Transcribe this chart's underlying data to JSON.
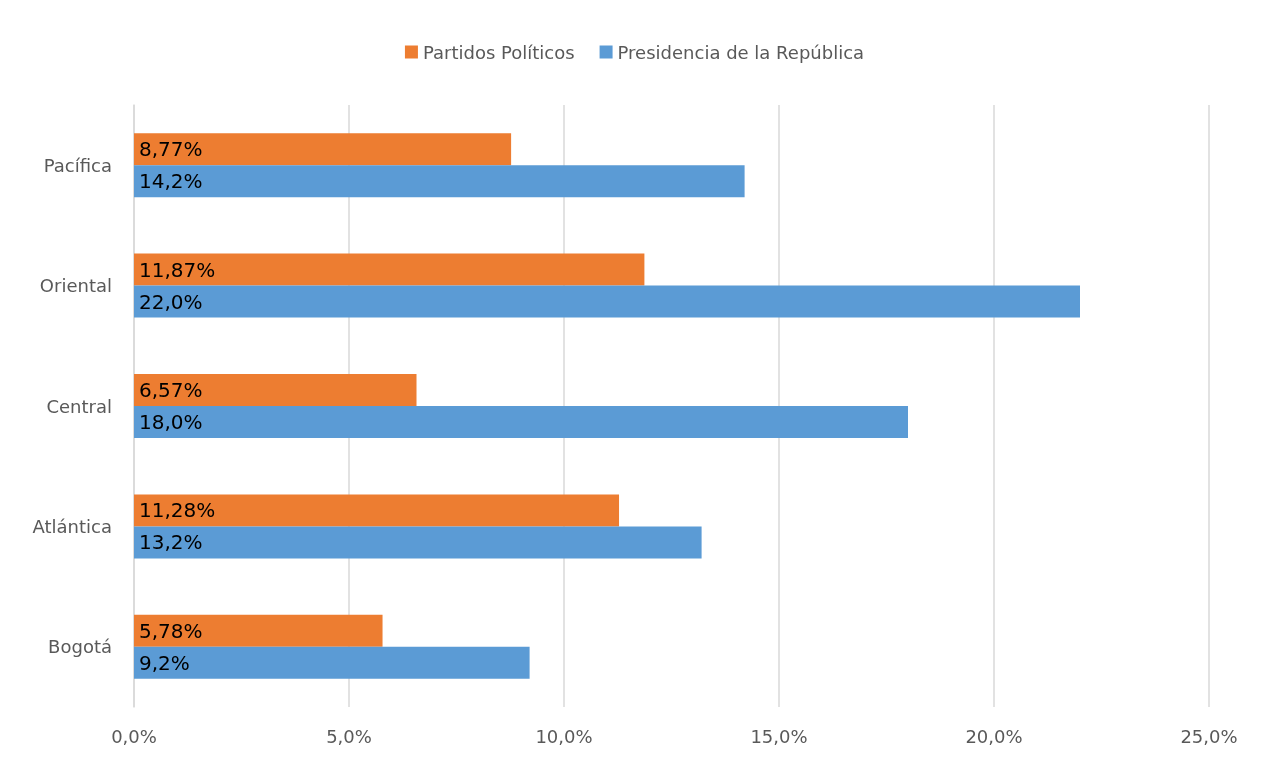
{
  "chart_data": {
    "type": "bar",
    "orientation": "horizontal",
    "categories": [
      "Pacífica",
      "Oriental",
      "Central",
      "Atlántica",
      "Bogotá"
    ],
    "series": [
      {
        "name": "Partidos Políticos",
        "color": "#ed7d31",
        "values": [
          8.77,
          11.87,
          6.57,
          11.28,
          5.78
        ],
        "value_labels": [
          "8,77%",
          "11,87%",
          "6,57%",
          "11,28%",
          "5,78%"
        ]
      },
      {
        "name": "Presidencia de la República",
        "color": "#5b9bd5",
        "values": [
          14.2,
          22.0,
          18.0,
          13.2,
          9.2
        ],
        "value_labels": [
          "14,2%",
          "22,0%",
          "18,0%",
          "13,2%",
          "9,2%"
        ]
      }
    ],
    "xlim": [
      0,
      25
    ],
    "xticks": [
      {
        "value": 0,
        "label": "0,0%"
      },
      {
        "value": 5,
        "label": "5,0%"
      },
      {
        "value": 10,
        "label": "10,0%"
      },
      {
        "value": 15,
        "label": "15,0%"
      },
      {
        "value": 20,
        "label": "20,0%"
      },
      {
        "value": 25,
        "label": "25,0%"
      }
    ],
    "grid": "x",
    "legend": "top"
  }
}
